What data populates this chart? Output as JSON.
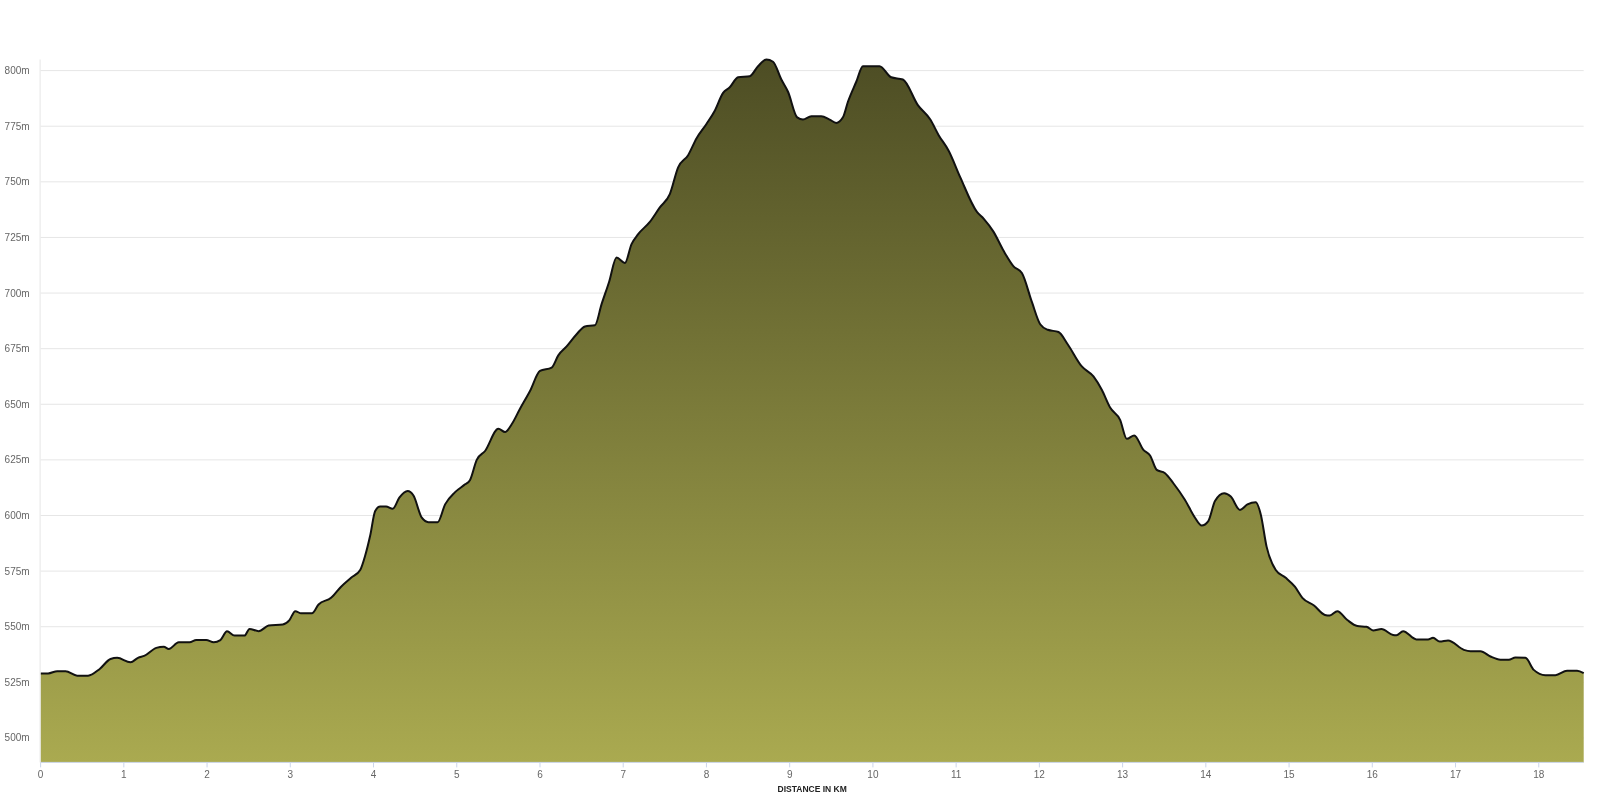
{
  "chart_data": {
    "type": "area",
    "xlabel": "DISTANCE IN KM",
    "x": [
      0,
      0.09,
      0.2,
      0.3,
      0.44,
      0.57,
      0.71,
      0.84,
      0.92,
      1.08,
      1.17,
      1.25,
      1.39,
      1.48,
      1.54,
      1.66,
      1.79,
      1.87,
      1.99,
      2.08,
      2.16,
      2.24,
      2.33,
      2.45,
      2.51,
      2.62,
      2.74,
      2.91,
      2.99,
      3.06,
      3.13,
      3.26,
      3.34,
      3.49,
      3.61,
      3.73,
      3.84,
      3.9,
      3.96,
      4.02,
      4.08,
      4.15,
      4.23,
      4.31,
      4.41,
      4.48,
      4.58,
      4.66,
      4.77,
      4.86,
      4.98,
      5.1,
      5.16,
      5.24,
      5.34,
      5.5,
      5.58,
      5.66,
      5.76,
      5.88,
      6.0,
      6.14,
      6.22,
      6.32,
      6.44,
      6.54,
      6.66,
      6.74,
      6.83,
      6.92,
      7.02,
      7.1,
      7.18,
      7.32,
      7.44,
      7.56,
      7.66,
      7.78,
      7.88,
      8.0,
      8.1,
      8.2,
      8.28,
      8.38,
      8.52,
      8.62,
      8.72,
      8.8,
      8.9,
      8.98,
      9.09,
      9.16,
      9.26,
      9.38,
      9.48,
      9.56,
      9.64,
      9.7,
      9.8,
      9.88,
      10.08,
      10.22,
      10.36,
      10.54,
      10.69,
      10.79,
      10.91,
      11.05,
      11.25,
      11.33,
      11.45,
      11.57,
      11.69,
      11.79,
      11.91,
      12.01,
      12.1,
      12.23,
      12.34,
      12.51,
      12.65,
      12.75,
      12.85,
      12.97,
      13.05,
      13.14,
      13.25,
      13.33,
      13.41,
      13.51,
      13.61,
      13.75,
      13.87,
      13.95,
      14.03,
      14.11,
      14.22,
      14.3,
      14.41,
      14.5,
      14.6,
      14.66,
      14.73,
      14.84,
      14.96,
      15.07,
      15.16,
      15.3,
      15.43,
      15.49,
      15.58,
      15.7,
      15.82,
      15.93,
      16.01,
      16.11,
      16.25,
      16.29,
      16.37,
      16.53,
      16.67,
      16.73,
      16.81,
      16.91,
      17.1,
      17.18,
      17.3,
      17.42,
      17.54,
      17.64,
      17.72,
      17.84,
      17.94,
      18.08,
      18.2,
      18.34,
      18.46,
      18.54
    ],
    "values": [
      529,
      529,
      530,
      530,
      528,
      528,
      531,
      535.5,
      536,
      534,
      536,
      537,
      540.5,
      541,
      540,
      543,
      543,
      544,
      544,
      543,
      544,
      548,
      546,
      546,
      549,
      548,
      550.5,
      551,
      553,
      557,
      556,
      556,
      560,
      563,
      568,
      572,
      575.5,
      582,
      591,
      602,
      604,
      604,
      603,
      608,
      611,
      609,
      599,
      597,
      597,
      605,
      610.5,
      614,
      616,
      625,
      629,
      639,
      637.5,
      641,
      648,
      656,
      665,
      666.5,
      672,
      676,
      681.5,
      685,
      685.5,
      695,
      705,
      716,
      713.5,
      722,
      726.5,
      732,
      738.5,
      744.5,
      756.5,
      762,
      769.5,
      776,
      782,
      790,
      792.5,
      797,
      797.5,
      802,
      805,
      804,
      796,
      790.5,
      779,
      778,
      779.5,
      779.5,
      778,
      776.5,
      779,
      786,
      795,
      802,
      802,
      797,
      796,
      784.5,
      778,
      771,
      764,
      752,
      736.5,
      733.5,
      727.5,
      719,
      712,
      709,
      696,
      686,
      683.5,
      682.5,
      677,
      667,
      662.5,
      656.5,
      648.5,
      643,
      634.5,
      636,
      629.5,
      627,
      620.5,
      619,
      614.5,
      607,
      599,
      595.5,
      597.5,
      606.5,
      610,
      608.5,
      602.5,
      605,
      606,
      600.5,
      586,
      575.5,
      572,
      568,
      563,
      559.5,
      555.3,
      555,
      557,
      553,
      550.3,
      550,
      548.3,
      549,
      546.3,
      546.2,
      548,
      544.3,
      544.2,
      545,
      543.3,
      543.8,
      539.6,
      539,
      539,
      536.6,
      535.2,
      535.2,
      536.2,
      536,
      530.6,
      528.2,
      528.2,
      530.2,
      530.2,
      529.1
    ],
    "color": "#7b7b3a",
    "xlim": [
      0,
      18.54
    ],
    "xticks": [
      0,
      1,
      2,
      3,
      4,
      5,
      6,
      7,
      8,
      9,
      10,
      11,
      12,
      13,
      14,
      15,
      16,
      17,
      18
    ],
    "ylim": [
      489,
      805
    ],
    "yticks": [
      {
        "value": 500,
        "label": "500m"
      },
      {
        "value": 525,
        "label": "525m"
      },
      {
        "value": 550,
        "label": "550m"
      },
      {
        "value": 575,
        "label": "575m"
      },
      {
        "value": 600,
        "label": "600m"
      },
      {
        "value": 625,
        "label": "625m"
      },
      {
        "value": 650,
        "label": "650m"
      },
      {
        "value": 675,
        "label": "675m"
      },
      {
        "value": 700,
        "label": "700m"
      },
      {
        "value": 725,
        "label": "725m"
      },
      {
        "value": 750,
        "label": "750m"
      },
      {
        "value": 775,
        "label": "775m"
      },
      {
        "value": 800,
        "label": "800m"
      }
    ],
    "grid": "y"
  }
}
